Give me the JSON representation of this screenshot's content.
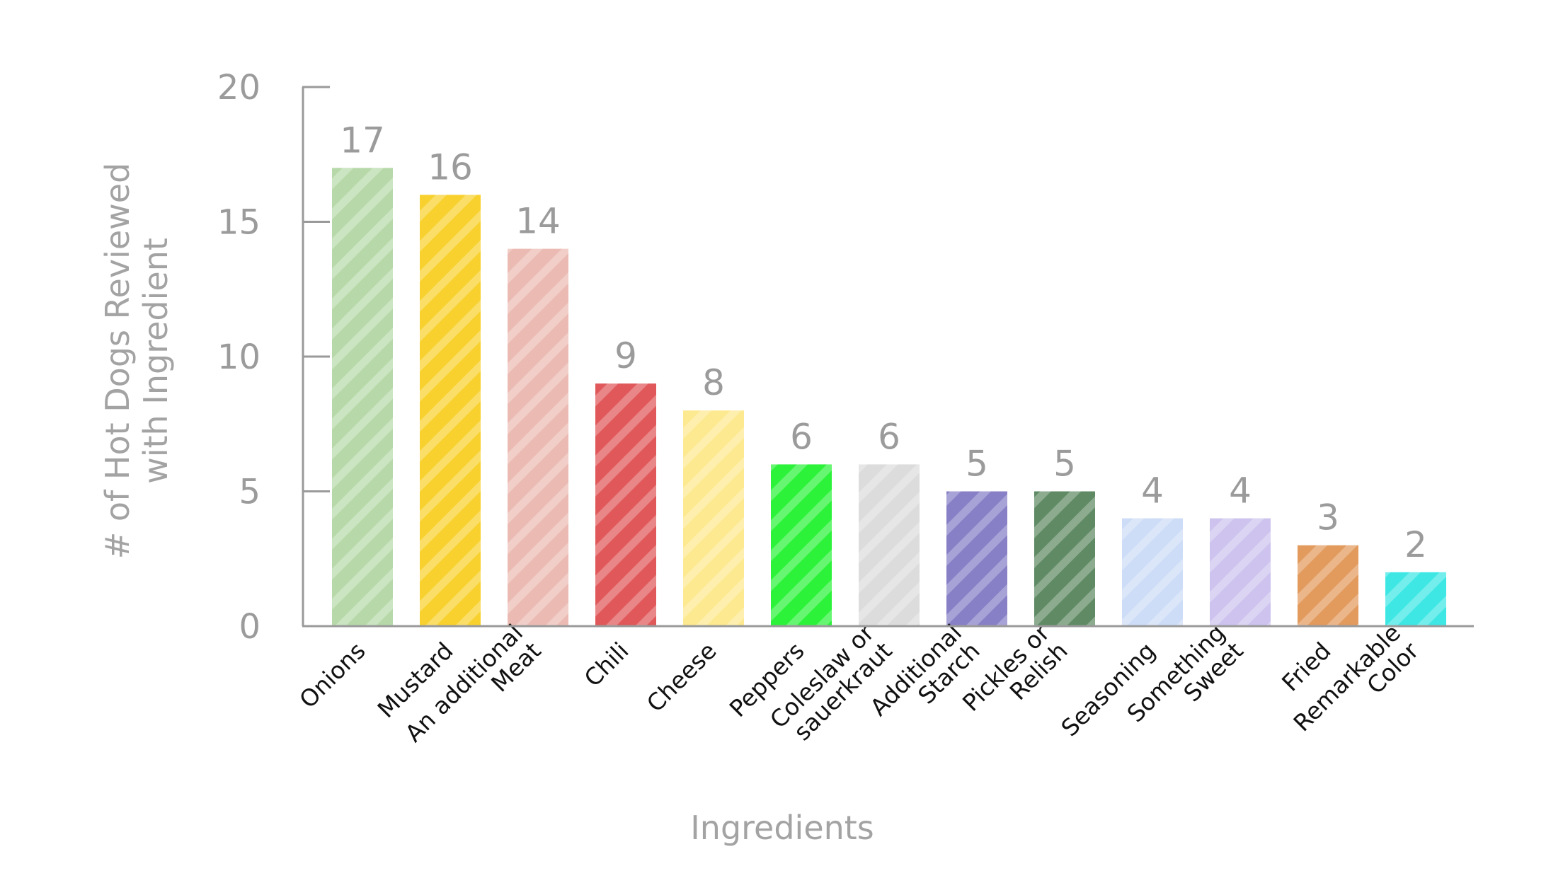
{
  "chart_data": {
    "type": "bar",
    "categories": [
      [
        "Onions"
      ],
      [
        "Mustard"
      ],
      [
        "An additional",
        "Meat"
      ],
      [
        "Chili"
      ],
      [
        "Cheese"
      ],
      [
        "Peppers"
      ],
      [
        "Coleslaw or",
        "sauerkraut"
      ],
      [
        "Additional",
        "Starch"
      ],
      [
        "Pickles or",
        "Relish"
      ],
      [
        "Seasoning"
      ],
      [
        "Something",
        "Sweet"
      ],
      [
        "Fried"
      ],
      [
        "Remarkable",
        "Color"
      ]
    ],
    "values": [
      17,
      16,
      14,
      9,
      8,
      6,
      6,
      5,
      5,
      4,
      4,
      3,
      2
    ],
    "colors": [
      "#b7d9a9",
      "#f8d12e",
      "#ebbbb3",
      "#e0585a",
      "#fde98f",
      "#2cf23a",
      "#dcdcdc",
      "#8780c6",
      "#5f8a64",
      "#cddcf7",
      "#cdc3ee",
      "#e29a5d",
      "#3ee7e4"
    ],
    "ylim": [
      0,
      20
    ],
    "yticks": [
      0,
      5,
      10,
      15,
      20
    ],
    "xlabel": "Ingredients",
    "ylabel": [
      "# of Hot Dogs Reviewed",
      "with Ingredient"
    ],
    "pattern": "diagonal-stripes",
    "grid": false,
    "legend": "none"
  }
}
